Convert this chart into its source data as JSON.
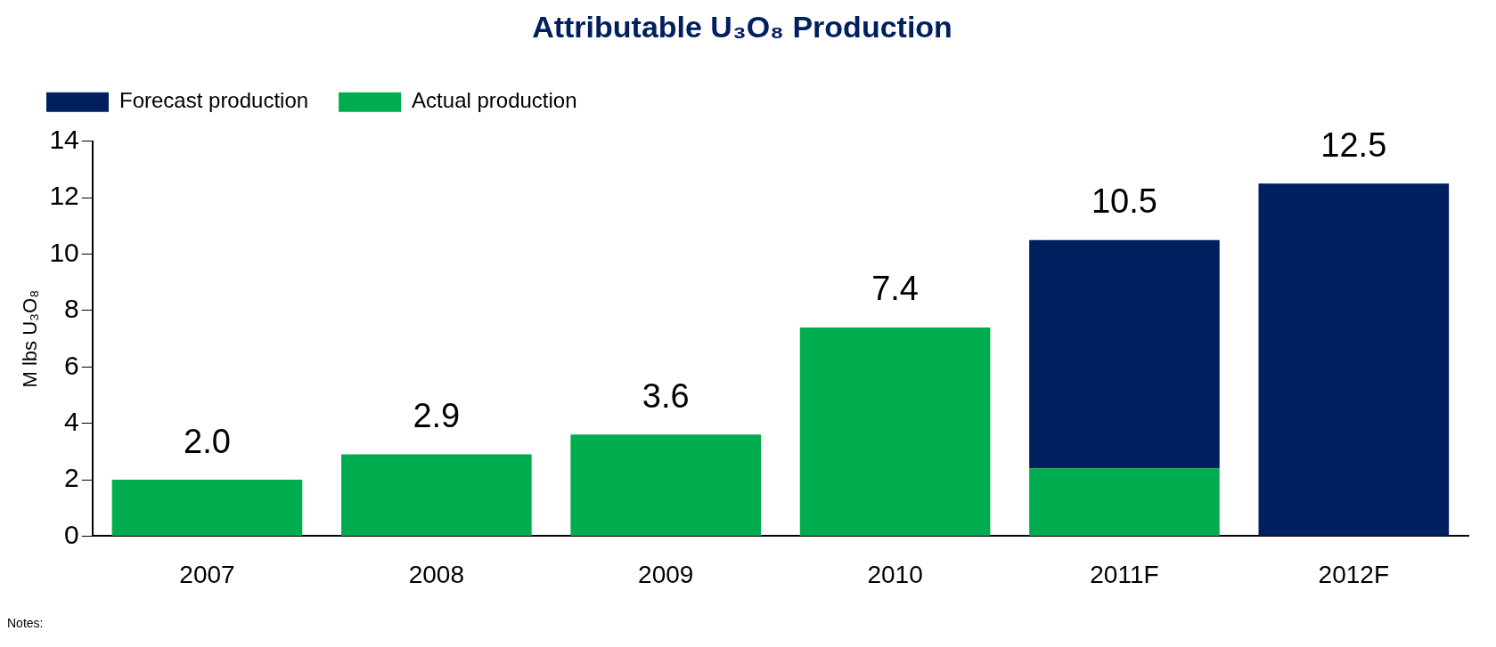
{
  "chart_data": {
    "type": "bar",
    "title": "Attributable U₃O₈ Production",
    "ylabel": "M lbs U₃O₈",
    "categories": [
      "2007",
      "2008",
      "2009",
      "2010",
      "2011F",
      "2012F"
    ],
    "stacked": true,
    "series": [
      {
        "name": "Actual production",
        "color": "#00ad4e",
        "values": [
          2.0,
          2.9,
          3.6,
          7.4,
          2.4,
          null
        ]
      },
      {
        "name": "Forecast production",
        "color": "#001f5f",
        "values": [
          null,
          null,
          null,
          null,
          8.1,
          12.5
        ]
      }
    ],
    "totals": [
      "2.0",
      "2.9",
      "3.6",
      "7.4",
      "10.5",
      "12.5"
    ],
    "ylim": [
      0,
      14
    ],
    "yticks": [
      0,
      2,
      4,
      6,
      8,
      10,
      12,
      14
    ],
    "grid": false,
    "legend": "top left",
    "annotations": [
      "Notes:"
    ]
  }
}
